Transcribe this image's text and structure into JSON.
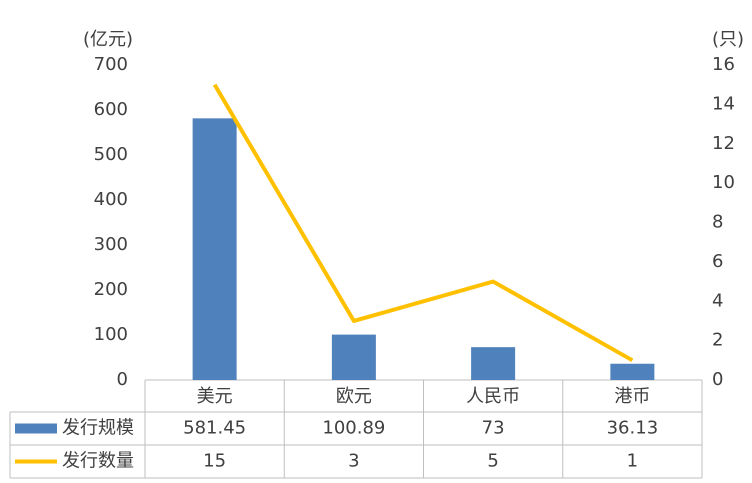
{
  "chart_data": {
    "type": "combo",
    "ylabel": "(亿元)",
    "y2label": "(只)",
    "categories": [
      "美元",
      "欧元",
      "人民币",
      "港币"
    ],
    "series": [
      {
        "name": "发行规模",
        "type": "bar",
        "color": "#4f81bd",
        "values": [
          581.45,
          100.89,
          73,
          36.13
        ]
      },
      {
        "name": "发行数量",
        "type": "line",
        "color": "#ffc000",
        "axis": "y2",
        "values": [
          15,
          3,
          5,
          1
        ]
      }
    ],
    "ylim": [
      0,
      700
    ],
    "yticks": [
      0,
      100,
      200,
      300,
      400,
      500,
      600,
      700
    ],
    "y2lim": [
      0,
      16
    ],
    "y2ticks": [
      0,
      2,
      4,
      6,
      8,
      10,
      12,
      14,
      16
    ],
    "data_table": true
  }
}
